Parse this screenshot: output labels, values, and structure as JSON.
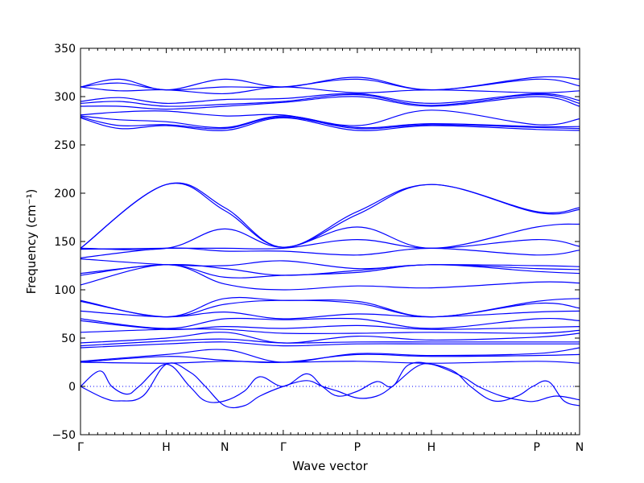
{
  "chart_data": {
    "type": "line",
    "title": "",
    "xlabel": "Wave vector",
    "ylabel": "Frequency (cm⁻¹)",
    "ylim": [
      -50,
      350
    ],
    "yticks": [
      -50,
      0,
      50,
      100,
      150,
      200,
      250,
      300,
      350
    ],
    "xlim": [
      0,
      6.4
    ],
    "xticks": [
      {
        "label": "Γ",
        "x": 0
      },
      {
        "label": "H",
        "x": 1.1
      },
      {
        "label": "N",
        "x": 1.85
      },
      {
        "label": "Γ",
        "x": 2.6
      },
      {
        "label": "P",
        "x": 3.55
      },
      {
        "label": "H",
        "x": 4.5
      },
      {
        "label": "P",
        "x": 5.85
      },
      {
        "label": "N",
        "x": 6.4
      }
    ],
    "zero_line": true,
    "grid": false,
    "legend": "none",
    "line_color": "#0000ff",
    "bands": [
      {
        "x": [
          0,
          0.5,
          1.1,
          1.85,
          2.6,
          3.55,
          4.5,
          5.85,
          6.4
        ],
        "y": [
          310,
          318,
          307,
          318,
          310,
          320,
          307,
          320,
          318
        ]
      },
      {
        "x": [
          0,
          0.5,
          1.1,
          1.85,
          2.6,
          3.55,
          4.5,
          5.85,
          6.4
        ],
        "y": [
          310,
          314,
          307,
          310,
          310,
          318,
          307,
          318,
          311
        ]
      },
      {
        "x": [
          0,
          0.5,
          1.1,
          1.85,
          2.6,
          3.55,
          4.5,
          5.85,
          6.4
        ],
        "y": [
          310,
          306,
          307,
          303,
          310,
          304,
          307,
          304,
          306
        ]
      },
      {
        "x": [
          0,
          0.5,
          1.1,
          1.85,
          2.6,
          3.55,
          4.5,
          5.85,
          6.4
        ],
        "y": [
          295,
          299,
          293,
          297,
          298,
          303,
          293,
          303,
          296
        ]
      },
      {
        "x": [
          0,
          0.5,
          1.1,
          1.85,
          2.6,
          3.55,
          4.5,
          5.85,
          6.4
        ],
        "y": [
          293,
          295,
          290,
          292,
          295,
          302,
          291,
          302,
          293
        ]
      },
      {
        "x": [
          0,
          0.5,
          1.1,
          1.85,
          2.6,
          3.55,
          4.5,
          5.85,
          6.4
        ],
        "y": [
          290,
          290,
          287,
          290,
          294,
          300,
          290,
          300,
          290
        ]
      },
      {
        "x": [
          0,
          0.5,
          1.1,
          1.85,
          2.6,
          3.55,
          4.5,
          5.85,
          6.4
        ],
        "y": [
          281,
          284,
          285,
          280,
          281,
          270,
          286,
          271,
          277
        ]
      },
      {
        "x": [
          0,
          0.5,
          1.1,
          1.85,
          2.6,
          3.55,
          4.5,
          5.85,
          6.4
        ],
        "y": [
          280,
          276,
          274,
          268,
          280,
          268,
          272,
          269,
          269
        ]
      },
      {
        "x": [
          0,
          0.5,
          1.1,
          1.85,
          2.6,
          3.55,
          4.5,
          5.85,
          6.4
        ],
        "y": [
          279,
          270,
          271,
          267,
          279,
          267,
          271,
          268,
          267
        ]
      },
      {
        "x": [
          0,
          0.5,
          1.1,
          1.85,
          2.6,
          3.55,
          4.5,
          5.85,
          6.4
        ],
        "y": [
          278,
          267,
          270,
          265,
          278,
          265,
          270,
          266,
          265
        ]
      },
      {
        "x": [
          0,
          1.1,
          1.85,
          2.6,
          3.55,
          4.5,
          5.85,
          6.4
        ],
        "y": [
          143,
          209,
          185,
          144,
          181,
          209,
          181,
          185
        ]
      },
      {
        "x": [
          0,
          1.1,
          1.85,
          2.6,
          3.55,
          4.5,
          5.85,
          6.4
        ],
        "y": [
          143,
          209,
          182,
          144,
          178,
          209,
          180,
          183
        ]
      },
      {
        "x": [
          0,
          1.1,
          1.85,
          2.6,
          3.55,
          4.5,
          5.85,
          6.4
        ],
        "y": [
          143,
          143,
          163,
          144,
          165,
          143,
          165,
          168
        ]
      },
      {
        "x": [
          0,
          1.1,
          1.85,
          2.6,
          3.55,
          4.5,
          5.85,
          6.4
        ],
        "y": [
          142,
          143,
          143,
          143,
          152,
          143,
          152,
          145
        ]
      },
      {
        "x": [
          0,
          1.1,
          1.85,
          2.6,
          3.55,
          4.5,
          5.85,
          6.4
        ],
        "y": [
          133,
          143,
          140,
          140,
          136,
          143,
          136,
          141
        ]
      },
      {
        "x": [
          0,
          1.1,
          1.85,
          2.6,
          3.55,
          4.5,
          5.85,
          6.4
        ],
        "y": [
          132,
          126,
          125,
          130,
          122,
          126,
          125,
          124
        ]
      },
      {
        "x": [
          0,
          1.1,
          1.85,
          2.6,
          3.55,
          4.5,
          5.85,
          6.4
        ],
        "y": [
          117,
          126,
          122,
          115,
          120,
          126,
          122,
          121
        ]
      },
      {
        "x": [
          0,
          1.1,
          1.85,
          2.6,
          3.55,
          4.5,
          5.85,
          6.4
        ],
        "y": [
          115,
          126,
          113,
          115,
          118,
          126,
          119,
          117
        ]
      },
      {
        "x": [
          0,
          1.1,
          1.85,
          2.6,
          3.55,
          4.5,
          5.85,
          6.4
        ],
        "y": [
          105,
          126,
          106,
          100,
          104,
          102,
          108,
          107
        ]
      },
      {
        "x": [
          0,
          1.1,
          1.85,
          2.6,
          3.55,
          4.5,
          5.85,
          6.4
        ],
        "y": [
          89,
          72,
          91,
          89,
          88,
          72,
          88,
          91
        ]
      },
      {
        "x": [
          0,
          1.1,
          1.85,
          2.6,
          3.55,
          4.5,
          5.85,
          6.4
        ],
        "y": [
          88,
          72,
          85,
          89,
          86,
          72,
          86,
          81
        ]
      },
      {
        "x": [
          0,
          1.1,
          1.85,
          2.6,
          3.55,
          4.5,
          5.85,
          6.4
        ],
        "y": [
          78,
          72,
          77,
          70,
          75,
          72,
          77,
          78
        ]
      },
      {
        "x": [
          0,
          1.1,
          1.85,
          2.6,
          3.55,
          4.5,
          5.85,
          6.4
        ],
        "y": [
          70,
          60,
          70,
          69,
          70,
          60,
          70,
          68
        ]
      },
      {
        "x": [
          0,
          1.1,
          1.85,
          2.6,
          3.55,
          4.5,
          5.85,
          6.4
        ],
        "y": [
          68,
          59,
          62,
          60,
          63,
          59,
          61,
          62
        ]
      },
      {
        "x": [
          0,
          1.1,
          1.85,
          2.6,
          3.55,
          4.5,
          5.85,
          6.4
        ],
        "y": [
          56,
          59,
          59,
          55,
          55,
          56,
          55,
          58
        ]
      },
      {
        "x": [
          0,
          1.1,
          1.85,
          2.6,
          3.55,
          4.5,
          5.85,
          6.4
        ],
        "y": [
          45,
          50,
          56,
          45,
          52,
          48,
          51,
          55
        ]
      },
      {
        "x": [
          0,
          1.1,
          1.85,
          2.6,
          3.55,
          4.5,
          5.85,
          6.4
        ],
        "y": [
          42,
          47,
          49,
          45,
          46,
          46,
          46,
          46
        ]
      },
      {
        "x": [
          0,
          1.1,
          1.85,
          2.6,
          3.55,
          4.5,
          5.85,
          6.4
        ],
        "y": [
          40,
          44,
          46,
          42,
          44,
          44,
          44,
          44
        ]
      },
      {
        "x": [
          0,
          1.1,
          1.85,
          2.6,
          3.55,
          4.5,
          5.85,
          6.4
        ],
        "y": [
          26,
          33,
          38,
          25,
          34,
          32,
          34,
          40
        ]
      },
      {
        "x": [
          0,
          1.1,
          1.85,
          2.6,
          3.55,
          4.5,
          5.85,
          6.4
        ],
        "y": [
          25,
          31,
          27,
          25,
          33,
          31,
          32,
          33
        ]
      },
      {
        "x": [
          0,
          1.1,
          1.85,
          2.6,
          3.55,
          4.5,
          5.85,
          6.4
        ],
        "y": [
          25,
          24,
          26,
          25,
          26,
          24,
          26,
          24
        ]
      },
      {
        "x": [
          0,
          0.25,
          0.4,
          0.6,
          0.75,
          1.1,
          1.4,
          1.6,
          1.85,
          2.1,
          2.3,
          2.6,
          2.9,
          3.1,
          3.3,
          3.55,
          3.8,
          4.0,
          4.2,
          4.5,
          4.9,
          5.1,
          5.4,
          5.7,
          5.85,
          6.1,
          6.4
        ],
        "y": [
          0,
          16,
          0,
          -8,
          0,
          23,
          0,
          -15,
          -15,
          -5,
          10,
          0,
          13,
          0,
          -10,
          -5,
          5,
          0,
          22,
          23,
          10,
          0,
          -10,
          -15,
          -15,
          -10,
          -14
        ]
      },
      {
        "x": [
          0,
          0.3,
          0.5,
          0.8,
          1.1,
          1.4,
          1.6,
          1.85,
          2.1,
          2.3,
          2.6,
          2.9,
          3.1,
          3.3,
          3.55,
          3.8,
          4.0,
          4.3,
          4.5,
          4.8,
          5.0,
          5.3,
          5.6,
          5.8,
          6.0,
          6.2,
          6.4
        ],
        "y": [
          0,
          -12,
          -15,
          -10,
          23,
          15,
          0,
          -20,
          -20,
          -10,
          0,
          6,
          0,
          -5,
          -12,
          -10,
          0,
          20,
          23,
          15,
          0,
          -15,
          -10,
          0,
          5,
          -15,
          -20
        ]
      }
    ]
  }
}
